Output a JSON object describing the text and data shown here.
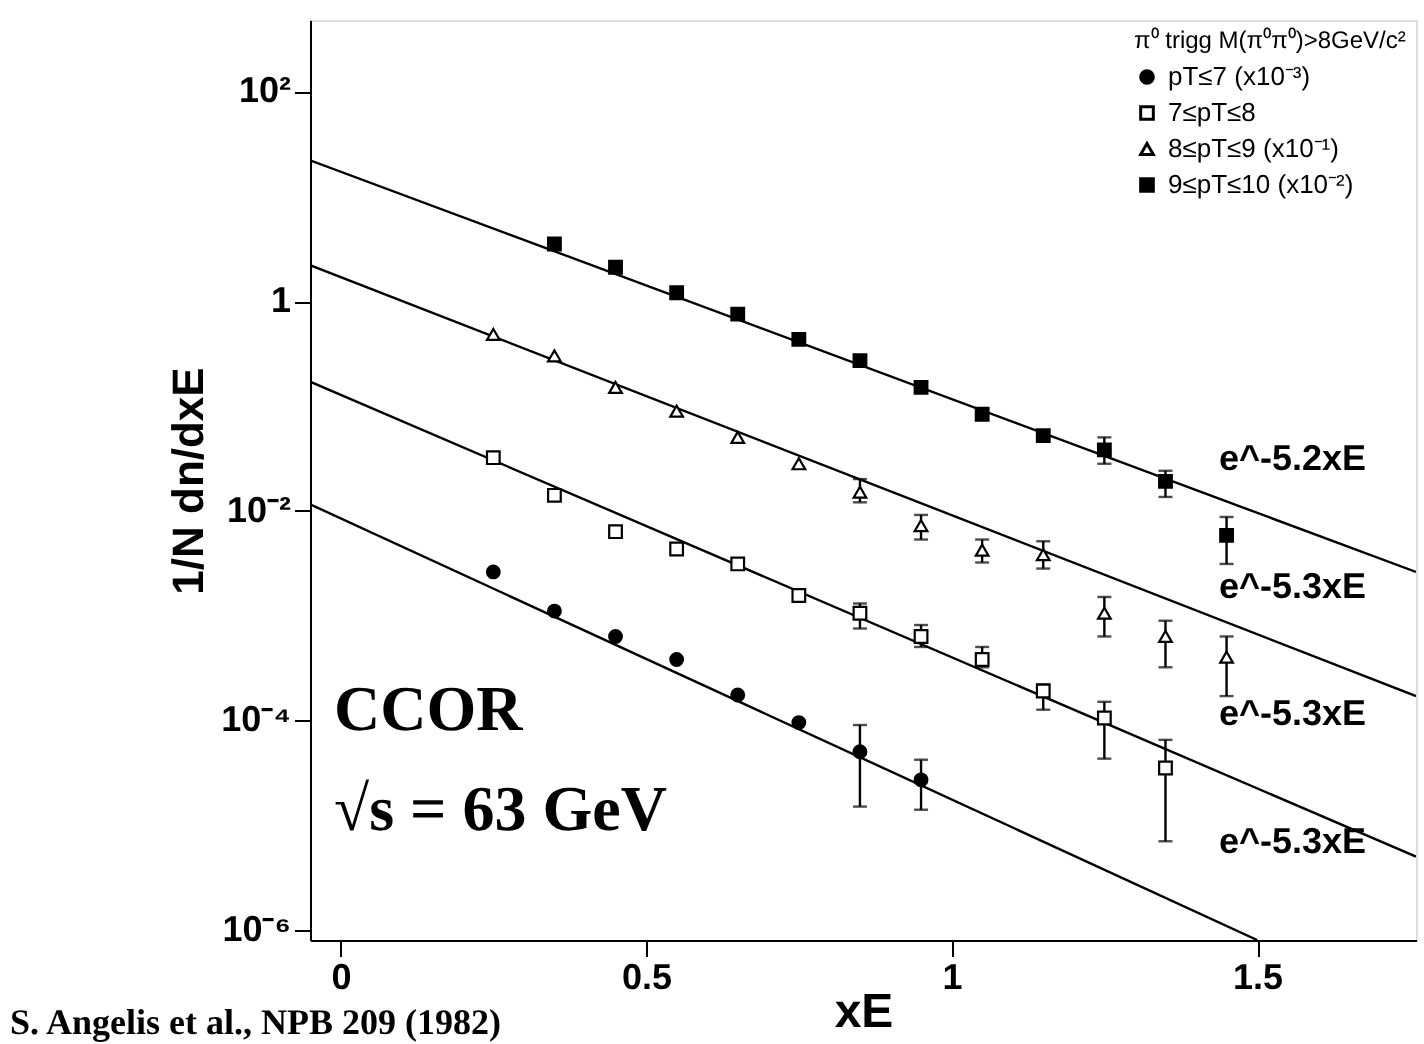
{
  "chart_data": {
    "type": "scatter",
    "xlabel": "xE",
    "ylabel": "1/N dn/dxE",
    "legend_title": "π⁰ trigg M(π⁰π⁰)>8GeV/c²",
    "xlim": [
      -0.05,
      1.76
    ],
    "ylim": [
      8e-07,
      480
    ],
    "log": "y",
    "xticks": [
      0,
      0.5,
      1,
      1.5
    ],
    "yticks": [
      {
        "value": 1e-06,
        "label": "10⁻⁶"
      },
      {
        "value": 0.0001,
        "label": "10⁻⁴"
      },
      {
        "value": 0.01,
        "label": "10⁻²"
      },
      {
        "value": 1,
        "label": "1"
      },
      {
        "value": 100,
        "label": "10²"
      }
    ],
    "grid": false,
    "legend": "top right",
    "series": [
      {
        "name": "pT≤7  (x10⁻³)",
        "color": "#000000",
        "marker": "circle",
        "x": [
          0.25,
          0.35,
          0.45,
          0.55,
          0.65,
          0.75,
          0.85,
          0.95
        ],
        "values": [
          0.0026,
          0.0011,
          0.00063,
          0.00038,
          0.000174,
          9.5e-05,
          5e-05,
          2.7e-05
        ],
        "errors": [
          null,
          null,
          null,
          null,
          null,
          null,
          [
            1.5e-05,
            9e-05
          ],
          [
            1.4e-05,
            4.2e-05
          ]
        ]
      },
      {
        "name": "7≤pT≤8",
        "color": "#000000",
        "marker": "square",
        "x": [
          0.25,
          0.35,
          0.45,
          0.55,
          0.65,
          0.75,
          0.85,
          0.95,
          1.05,
          1.15,
          1.25,
          1.35
        ],
        "values": [
          0.032,
          0.014,
          0.0063,
          0.0043,
          0.0031,
          0.00155,
          0.00105,
          0.00063,
          0.00038,
          0.00019,
          0.000105,
          3.5e-05
        ],
        "errors": [
          null,
          null,
          null,
          null,
          null,
          null,
          [
            0.00075,
            0.0013
          ],
          [
            0.0005,
            0.00081
          ],
          [
            0.00032,
            0.0005
          ],
          [
            0.000126,
            0.00022
          ],
          [
            4.3e-05,
            0.00015
          ],
          [
            7e-06,
            6.5e-05
          ]
        ]
      },
      {
        "name": "8≤pT≤9  (x10⁻¹)",
        "color": "#000000",
        "marker": "triangle",
        "x": [
          0.25,
          0.35,
          0.45,
          0.55,
          0.65,
          0.75,
          0.85,
          0.95,
          1.05,
          1.15,
          1.25,
          1.35,
          1.45
        ],
        "values": [
          0.48,
          0.3,
          0.15,
          0.089,
          0.05,
          0.028,
          0.015,
          0.0072,
          0.0042,
          0.0038,
          0.00105,
          0.00063,
          0.0004
        ],
        "errors": [
          null,
          null,
          null,
          null,
          null,
          null,
          [
            0.012,
            0.02
          ],
          [
            0.0053,
            0.0091
          ],
          [
            0.0032,
            0.0053
          ],
          [
            0.0028,
            0.0051
          ],
          [
            0.00063,
            0.0015
          ],
          [
            0.00032,
            0.00089
          ],
          [
            0.00017,
            0.00063
          ]
        ]
      },
      {
        "name": "9≤pT≤10  (x10⁻²)",
        "color": "#000000",
        "marker": "square",
        "x": [
          0.35,
          0.45,
          0.55,
          0.65,
          0.75,
          0.85,
          0.95,
          1.05,
          1.15,
          1.25,
          1.35,
          1.45
        ],
        "values": [
          3.5,
          2.1,
          1.2,
          0.75,
          0.43,
          0.27,
          0.15,
          0.083,
          0.052,
          0.038,
          0.019,
          0.0058
        ],
        "errors": [
          null,
          null,
          null,
          null,
          null,
          null,
          null,
          null,
          null,
          [
            0.028,
            0.05
          ],
          [
            0.0135,
            0.024
          ],
          [
            0.0031,
            0.0087
          ]
        ]
      },
      {
        "type": "line",
        "color": "#000000",
        "x": [
          -0.05,
          1.76
        ],
        "values": [
          22,
          0.0026
        ]
      },
      {
        "type": "line",
        "color": "#000000",
        "x": [
          -0.05,
          1.76
        ],
        "values": [
          2.2,
          0.00017
        ]
      },
      {
        "type": "line",
        "color": "#000000",
        "x": [
          -0.05,
          1.76
        ],
        "values": [
          0.17,
          5e-06
        ]
      },
      {
        "type": "line",
        "color": "#000000",
        "x": [
          -0.05,
          1.5
        ],
        "values": [
          0.0115,
          8e-07
        ]
      }
    ],
    "annotations": [
      "e^-5.2xE",
      "e^-5.3xE",
      "e^-5.3xE",
      "e^-5.3xE",
      "CCOR",
      "√s = 63 GeV",
      "S. Angelis et al., NPB 209 (1982)"
    ]
  }
}
